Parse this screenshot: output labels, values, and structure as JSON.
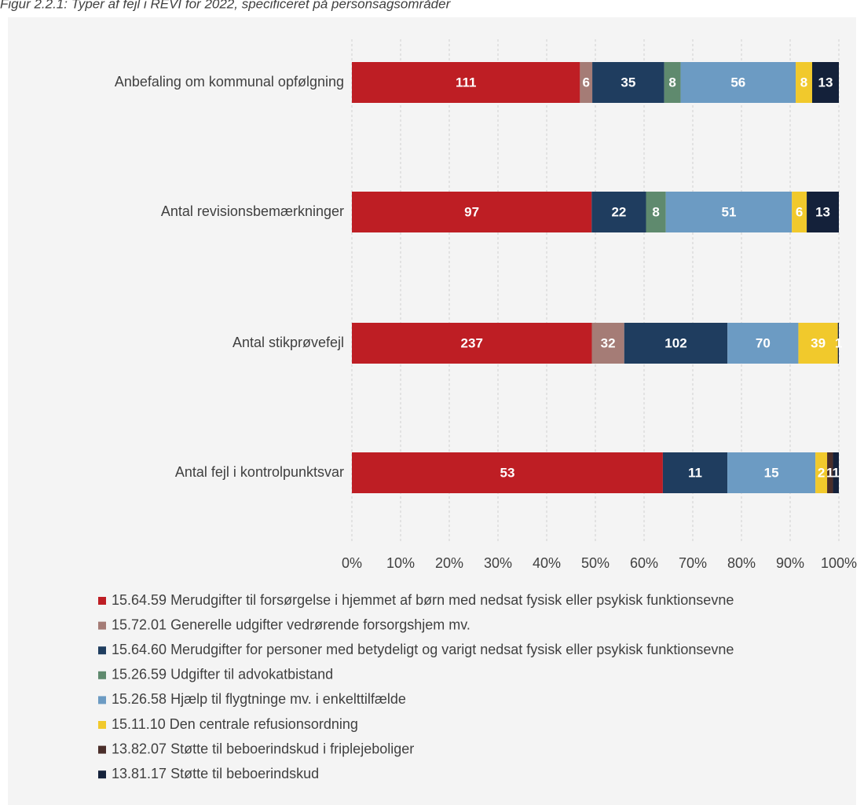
{
  "chart_data": {
    "type": "stacked-bar-100",
    "title": "Figur 2.2.1: Typer af fejl i REVI for 2022, specificeret på personsagsområder",
    "categories": [
      "Anbefaling om kommunal opfølgning",
      "Antal revisionsbemærkninger",
      "Antal stikprøvefejl",
      "Antal fejl i kontrolpunktsvar"
    ],
    "series": [
      {
        "name": "15.64.59 Merudgifter til forsørgelse i hjemmet af børn med nedsat fysisk eller psykisk funktionsevne",
        "color": "#be1e24",
        "values": [
          111,
          97,
          237,
          53
        ]
      },
      {
        "name": "15.72.01 Generelle udgifter vedrørende forsorgshjem mv.",
        "color": "#a57c76",
        "values": [
          6,
          null,
          32,
          null
        ]
      },
      {
        "name": "15.64.60 Merudgifter for personer med betydeligt og varigt nedsat fysisk eller psykisk funktionsevne",
        "color": "#1f3d5f",
        "values": [
          35,
          22,
          102,
          11
        ]
      },
      {
        "name": "15.26.59 Udgifter til advokatbistand",
        "color": "#5f8a6e",
        "values": [
          8,
          8,
          null,
          null
        ]
      },
      {
        "name": "15.26.58 Hjælp til flygtninge mv. i enkelttilfælde",
        "color": "#6c9bc3",
        "values": [
          56,
          51,
          70,
          15
        ]
      },
      {
        "name": "15.11.10 Den centrale refusionsordning",
        "color": "#f1c92c",
        "values": [
          8,
          6,
          39,
          2
        ]
      },
      {
        "name": "13.82.07 Støtte til beboerindskud i friplejeboliger",
        "color": "#4a2e2a",
        "values": [
          null,
          null,
          null,
          1
        ]
      },
      {
        "name": "13.81.17 Støtte til beboerindskud",
        "color": "#14213a",
        "values": [
          13,
          13,
          1,
          1
        ]
      }
    ],
    "xlim": [
      0,
      100
    ],
    "xticks": [
      {
        "value": 0,
        "label": "0%"
      },
      {
        "value": 10,
        "label": "10%"
      },
      {
        "value": 20,
        "label": "20%"
      },
      {
        "value": 30,
        "label": "30%"
      },
      {
        "value": 40,
        "label": "40%"
      },
      {
        "value": 50,
        "label": "50%"
      },
      {
        "value": 60,
        "label": "60%"
      },
      {
        "value": 70,
        "label": "70%"
      },
      {
        "value": 80,
        "label": "80%"
      },
      {
        "value": 90,
        "label": "90%"
      },
      {
        "value": 100,
        "label": "100%"
      }
    ],
    "grid": true,
    "legend": "bottom"
  }
}
